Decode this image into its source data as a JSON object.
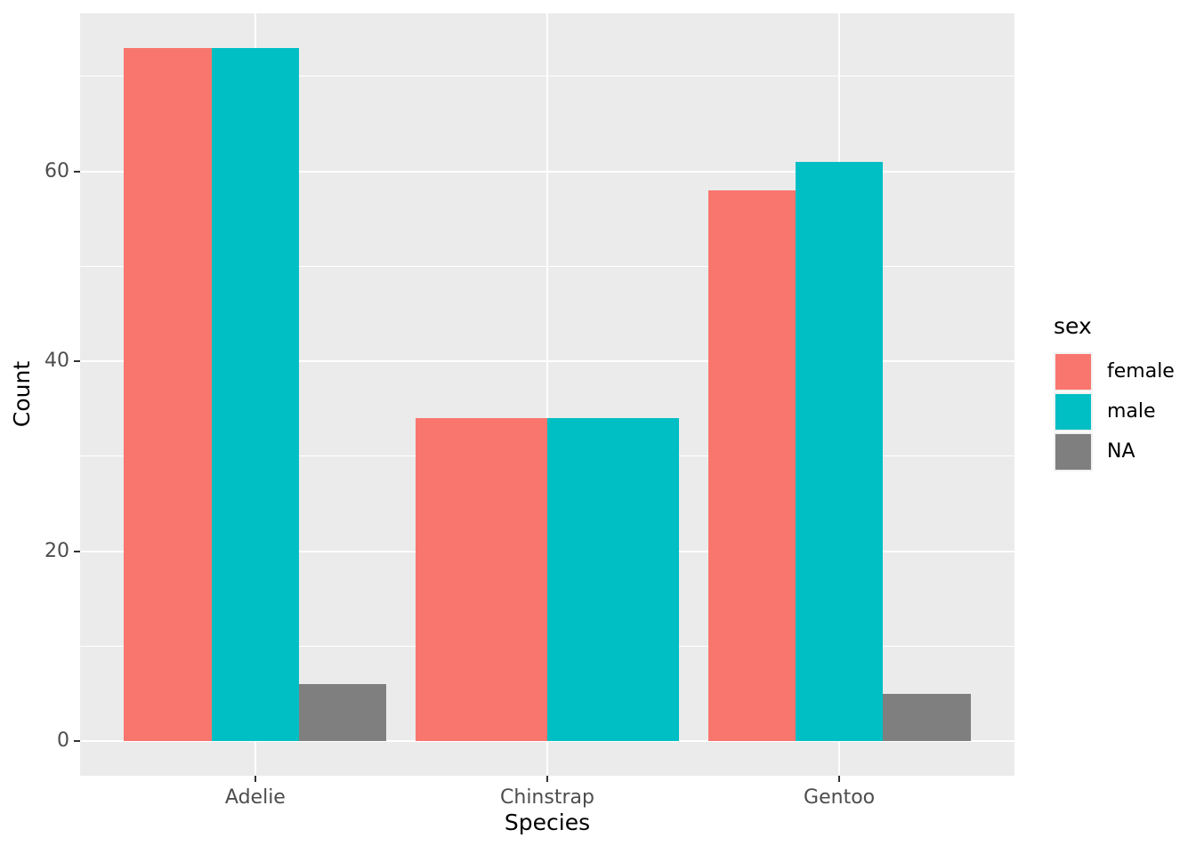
{
  "chart_data": {
    "type": "bar",
    "xlabel": "Species",
    "ylabel": "Count",
    "categories": [
      "Adelie",
      "Chinstrap",
      "Gentoo"
    ],
    "series": [
      {
        "name": "female",
        "color": "#F8766D",
        "values": [
          73,
          34,
          58
        ]
      },
      {
        "name": "male",
        "color": "#00BFC4",
        "values": [
          73,
          34,
          61
        ]
      },
      {
        "name": "NA",
        "color": "#7F7F7F",
        "values": [
          6,
          null,
          5
        ]
      }
    ],
    "ylim": [
      0,
      73
    ],
    "y_major_ticks": [
      0,
      20,
      40,
      60
    ],
    "y_minor_ticks": [
      10,
      30,
      50,
      70
    ],
    "grid": true,
    "bar_layout": {
      "position": "dodge",
      "group_width_fraction": 0.9
    },
    "legend": {
      "title": "sex",
      "position": "right",
      "labels": [
        "female",
        "male",
        "NA"
      ]
    },
    "theme": {
      "background": "#FFFFFF",
      "panel_background": "#EBEBEB",
      "grid_color": "#FFFFFF",
      "axis_tick_color": "#333333",
      "tick_label_color": "#4D4D4D",
      "axis_title_color": "#000000",
      "text_color": "#000000",
      "legend_key_background": "#F2F2F2"
    }
  }
}
